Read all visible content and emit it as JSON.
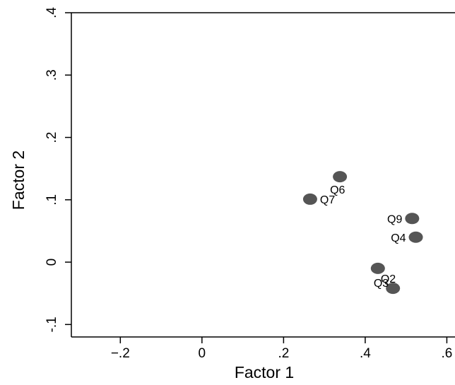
{
  "chart_data": {
    "type": "scatter",
    "xlabel": "Factor 1",
    "ylabel": "Factor 2",
    "xlim": [
      -0.32,
      0.62
    ],
    "ylim": [
      -0.12,
      0.4
    ],
    "xticks": [
      {
        "value": -0.2,
        "label": "−.2"
      },
      {
        "value": 0,
        "label": "0"
      },
      {
        "value": 0.2,
        "label": ".2"
      },
      {
        "value": 0.4,
        "label": ".4"
      },
      {
        "value": 0.6,
        "label": ".6"
      }
    ],
    "yticks": [
      {
        "value": -0.1,
        "label": "-.1"
      },
      {
        "value": 0,
        "label": "0"
      },
      {
        "value": 0.1,
        "label": ".1"
      },
      {
        "value": 0.2,
        "label": ".2"
      },
      {
        "value": 0.3,
        "label": ".3"
      },
      {
        "value": 0.4,
        "label": ".4"
      }
    ],
    "points": [
      {
        "label": "Q6",
        "x": 0.338,
        "y": 0.137,
        "label_pos": "below-right"
      },
      {
        "label": "Q7",
        "x": 0.265,
        "y": 0.101,
        "label_pos": "right"
      },
      {
        "label": "Q9",
        "x": 0.515,
        "y": 0.07,
        "label_pos": "left"
      },
      {
        "label": "Q4",
        "x": 0.524,
        "y": 0.04,
        "label_pos": "left"
      },
      {
        "label": "Q2",
        "x": 0.431,
        "y": -0.01,
        "label_pos": "below-right"
      },
      {
        "label": "Q3",
        "x": 0.468,
        "y": -0.042,
        "label_pos": "left"
      }
    ],
    "grid": false,
    "legend": "none",
    "marker_color": "#555555"
  }
}
